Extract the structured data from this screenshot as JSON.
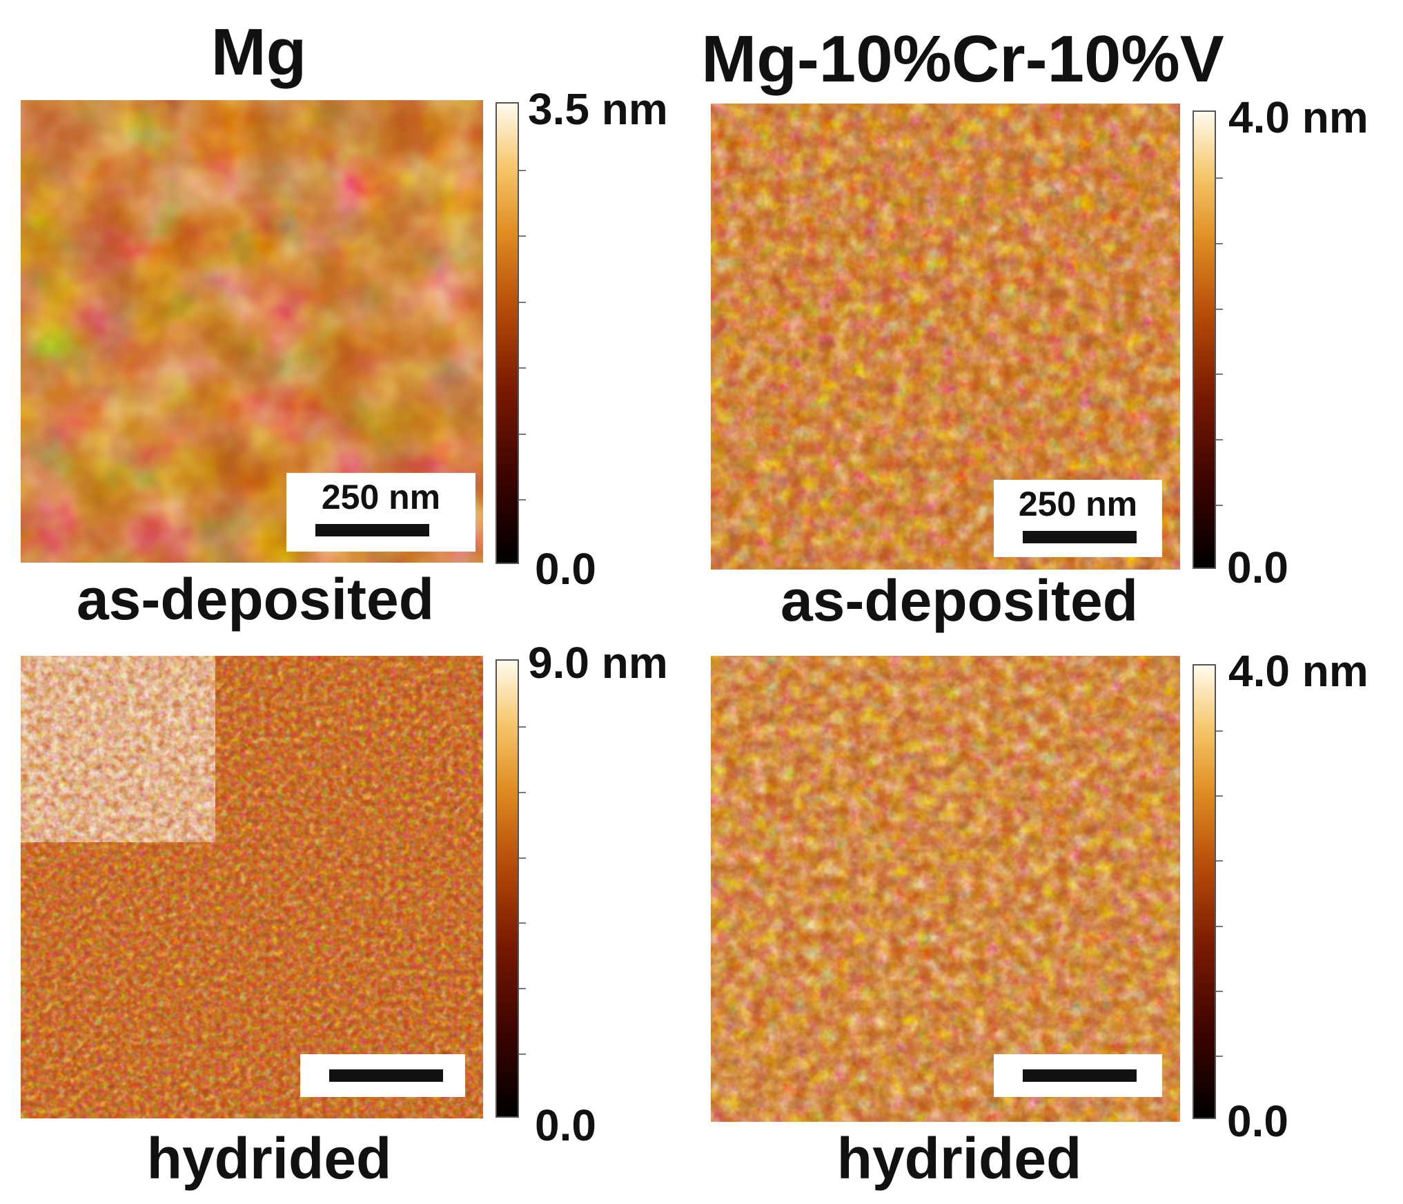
{
  "columns": [
    {
      "title": "Mg"
    },
    {
      "title": "Mg-10%Cr-10%V"
    }
  ],
  "panels": {
    "mg_as_deposited": {
      "caption": "as-deposited",
      "scale_max": "3.5 nm",
      "scale_min": "0.0",
      "scale_bar": "250 nm"
    },
    "mg_hydrided": {
      "caption": "hydrided",
      "scale_max": "9.0 nm",
      "scale_min": "0.0"
    },
    "alloy_as_deposited": {
      "caption": "as-deposited",
      "scale_max": "4.0 nm",
      "scale_min": "0.0",
      "scale_bar": "250 nm"
    },
    "alloy_hydrided": {
      "caption": "hydrided",
      "scale_max": "4.0 nm",
      "scale_min": "0.0"
    }
  },
  "colormap": {
    "low": "#000000",
    "mid": "#b54a08",
    "high": "#fffbee"
  }
}
